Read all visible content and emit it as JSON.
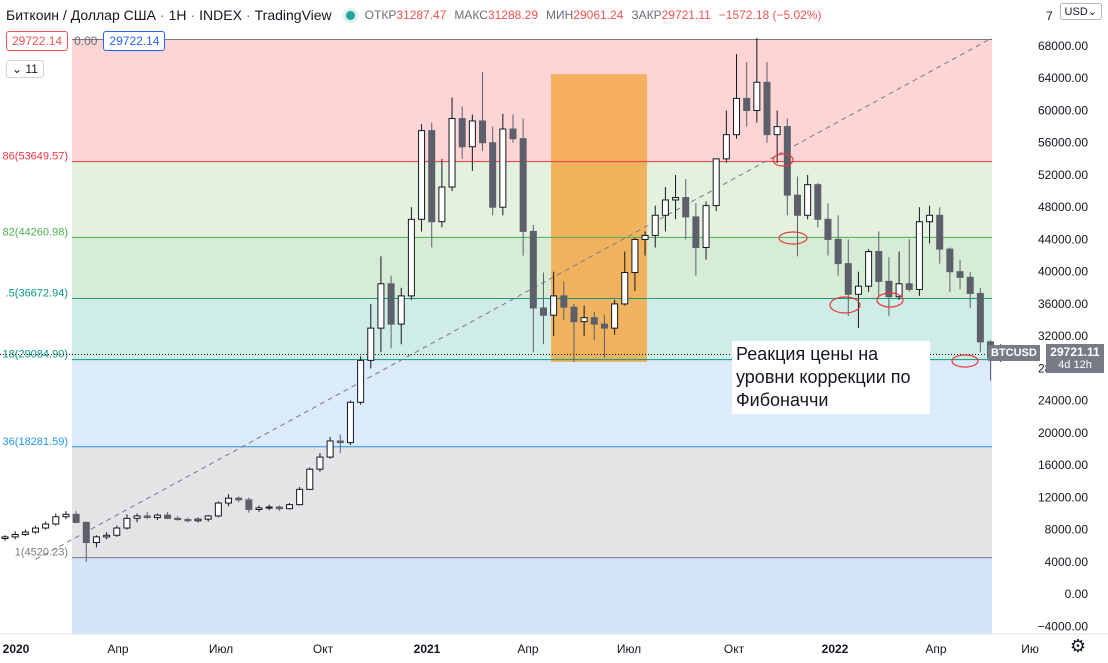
{
  "header": {
    "symbol_name": "Биткоин / Доллар США",
    "interval": "1Н",
    "exchange": "INDEX",
    "platform": "TradingView",
    "ohlc": {
      "open_label": "ОТКР",
      "open": "31287.47",
      "high_label": "МАКС",
      "high": "31288.29",
      "low_label": "МИН",
      "low": "29061.24",
      "close_label": "ЗАКР",
      "close": "29721.11",
      "change": "−1572.18 (−5.02%)"
    }
  },
  "price_boxes": {
    "sell": "29722.14",
    "spread": "0.00",
    "buy": "29722.14"
  },
  "indicators_toggle": "11",
  "currency_button": "USD",
  "annotation_text": "Реакция цены на уровни коррекции по Фибоначчи",
  "last_price": {
    "symbol": "BTCUSD",
    "price": "29721.11",
    "countdown": "4d 12h"
  },
  "chart_data": {
    "type": "candlestick",
    "title": "",
    "ylim": [
      -5000,
      70000
    ],
    "y_ticks": [
      "68000.00",
      "64000.00",
      "60000.00",
      "56000.00",
      "52000.00",
      "48000.00",
      "44000.00",
      "40000.00",
      "36000.00",
      "32000.00",
      "28000.00",
      "24000.00",
      "20000.00",
      "16000.00",
      "12000.00",
      "8000.00",
      "4000.00",
      "0.00",
      "−4000.00"
    ],
    "x_ticks": [
      "2020",
      "Апр",
      "Июл",
      "Окт",
      "2021",
      "Апр",
      "Июл",
      "Окт",
      "2022",
      "Апр",
      "Ию"
    ],
    "fib_levels": [
      {
        "label": "",
        "value": 68800,
        "color": "#787b86"
      },
      {
        "label": "86(53649.57)",
        "value": 53649.57,
        "color": "#f23645"
      },
      {
        "label": "82(44260.98)",
        "value": 44260.98,
        "color": "#4caf50"
      },
      {
        "label": ".5(36672.94)",
        "value": 36672.94,
        "color": "#089981"
      },
      {
        "label": "18(29084.90)",
        "value": 29084.9,
        "color": "#089981"
      },
      {
        "label": "36(18281.59)",
        "value": 18281.59,
        "color": "#2196f3"
      },
      {
        "label": "1(4520.23)",
        "value": 4520.23,
        "color": "#787b86"
      }
    ],
    "fib_zones": [
      {
        "from": 53649.57,
        "to": 68800,
        "color": "#fcd5d4"
      },
      {
        "from": 44260.98,
        "to": 53649.57,
        "color": "#e4f1df"
      },
      {
        "from": 36672.94,
        "to": 44260.98,
        "color": "#d6ecd6"
      },
      {
        "from": 29084.9,
        "to": 36672.94,
        "color": "#cfece7"
      },
      {
        "from": 18281.59,
        "to": 29084.9,
        "color": "#dbebfb"
      },
      {
        "from": 4520.23,
        "to": 18281.59,
        "color": "#e4e4e6"
      },
      {
        "from": -5000,
        "to": 4520.23,
        "color": "#d3e5f9"
      }
    ],
    "highlight_box": {
      "from_index": 36,
      "to_index": 42,
      "low": 28800,
      "high": 64500,
      "color": "#f4a847"
    },
    "trend_line": {
      "from": [
        3,
        4300
      ],
      "to": [
        70,
        69000
      ]
    },
    "candles": [
      [
        6900,
        7300,
        6600,
        7100
      ],
      [
        7100,
        7800,
        6800,
        7400
      ],
      [
        7400,
        8000,
        7200,
        7700
      ],
      [
        7700,
        8500,
        7500,
        8200
      ],
      [
        8200,
        9000,
        8000,
        8700
      ],
      [
        8700,
        10000,
        8500,
        9600
      ],
      [
        9600,
        10300,
        9300,
        9900
      ],
      [
        9900,
        10300,
        8800,
        8900
      ],
      [
        8900,
        9000,
        4000,
        6400
      ],
      [
        6400,
        7300,
        5800,
        7100
      ],
      [
        7100,
        7700,
        6800,
        7300
      ],
      [
        7300,
        8500,
        7100,
        8200
      ],
      [
        8200,
        9900,
        8000,
        9400
      ],
      [
        9400,
        10000,
        8900,
        9700
      ],
      [
        9700,
        10200,
        9300,
        9500
      ],
      [
        9500,
        10000,
        9200,
        9800
      ],
      [
        9800,
        10200,
        9300,
        9400
      ],
      [
        9400,
        9700,
        9100,
        9250
      ],
      [
        9250,
        9500,
        8900,
        9100
      ],
      [
        9100,
        9500,
        8900,
        9300
      ],
      [
        9300,
        9800,
        9000,
        9700
      ],
      [
        9700,
        11500,
        9500,
        11300
      ],
      [
        11300,
        12400,
        10900,
        11900
      ],
      [
        11900,
        12100,
        11400,
        11700
      ],
      [
        11700,
        12000,
        10100,
        10500
      ],
      [
        10500,
        11000,
        10200,
        10700
      ],
      [
        10700,
        11100,
        10400,
        10800
      ],
      [
        10800,
        11000,
        10300,
        10600
      ],
      [
        10600,
        11300,
        10500,
        11100
      ],
      [
        11100,
        13300,
        11000,
        13000
      ],
      [
        13000,
        15700,
        12900,
        15500
      ],
      [
        15500,
        17500,
        15200,
        17000
      ],
      [
        17000,
        19500,
        16800,
        19000
      ],
      [
        19000,
        19800,
        17500,
        18800
      ],
      [
        18800,
        24000,
        18500,
        23800
      ],
      [
        23800,
        29500,
        23500,
        29000
      ],
      [
        29000,
        36000,
        28000,
        33000
      ]
    ],
    "candles_2021": [
      [
        33000,
        41900,
        30000,
        38500
      ],
      [
        38500,
        39500,
        30500,
        33500
      ],
      [
        33500,
        38000,
        31000,
        37000
      ],
      [
        37000,
        48000,
        36500,
        46500
      ],
      [
        46500,
        58300,
        45000,
        57500
      ],
      [
        57500,
        58500,
        43000,
        46200
      ],
      [
        46200,
        54000,
        45500,
        50500
      ],
      [
        50500,
        61600,
        50000,
        59000
      ],
      [
        59000,
        60500,
        54000,
        55500
      ],
      [
        55500,
        59500,
        52500,
        58700
      ],
      [
        58700,
        64800,
        55000,
        56000
      ],
      [
        56000,
        58000,
        47000,
        48000
      ],
      [
        48000,
        59600,
        47000,
        57700
      ],
      [
        57700,
        59500,
        56000,
        56500
      ],
      [
        56500,
        59000,
        42000,
        45000
      ],
      [
        45000,
        45800,
        30000,
        35500
      ],
      [
        35500,
        39900,
        31000,
        34600
      ],
      [
        34600,
        40000,
        32000,
        37000
      ],
      [
        37000,
        38800,
        34000,
        35600
      ],
      [
        35600,
        36000,
        28800,
        33800
      ],
      [
        33800,
        35800,
        32000,
        34300
      ],
      [
        34300,
        35000,
        31500,
        33500
      ],
      [
        33500,
        34700,
        29300,
        33000
      ],
      [
        33000,
        36500,
        32200,
        36000
      ],
      [
        36000,
        42500,
        35800,
        39900
      ],
      [
        39900,
        44200,
        37600,
        44000
      ],
      [
        44000,
        45000,
        42000,
        44500
      ],
      [
        44500,
        48200,
        43000,
        47000
      ],
      [
        47000,
        50500,
        45000,
        48900
      ],
      [
        48900,
        52000,
        46500,
        49200
      ],
      [
        49200,
        51500,
        44000,
        46800
      ]
    ],
    "candles_2021b": [
      [
        46800,
        48500,
        39500,
        43000
      ],
      [
        43000,
        48700,
        41500,
        48200
      ],
      [
        48200,
        54000,
        47500,
        54000
      ],
      [
        54000,
        60000,
        53500,
        57000
      ],
      [
        57000,
        67000,
        56500,
        61500
      ],
      [
        61500,
        66000,
        58000,
        60000
      ],
      [
        60000,
        69000,
        58500,
        63500
      ],
      [
        63500,
        66000,
        56000,
        57000
      ],
      [
        57000,
        60000,
        53500,
        58000
      ],
      [
        58000,
        59000,
        47000,
        49500
      ],
      [
        49500,
        51800,
        41900,
        47000
      ],
      [
        47000,
        52000,
        46500,
        50800
      ],
      [
        50800,
        51000,
        45500,
        46500
      ],
      [
        46500,
        48500,
        42000,
        44000
      ],
      [
        44000,
        47000,
        39500,
        41000
      ],
      [
        41000,
        44000,
        34500,
        37200
      ],
      [
        37200,
        40000,
        33000,
        38200
      ],
      [
        38200,
        42800,
        37500,
        42500
      ],
      [
        42500,
        45000,
        37000,
        38800
      ],
      [
        38800,
        41800,
        34500,
        36900
      ],
      [
        36900,
        42500,
        36500,
        38500
      ],
      [
        38500,
        44000,
        37500,
        37800
      ],
      [
        37800,
        48000,
        37000,
        46200
      ],
      [
        46200,
        48200,
        43500,
        47000
      ],
      [
        47000,
        48000,
        41000,
        42800
      ],
      [
        42800,
        43000,
        37500,
        40000
      ],
      [
        40000,
        41500,
        37800,
        39300
      ],
      [
        39300,
        40000,
        35500,
        37300
      ],
      [
        37300,
        38000,
        30000,
        31300
      ],
      [
        31300,
        31500,
        26500,
        29300
      ],
      [
        29300,
        31000,
        28800,
        29721
      ]
    ]
  }
}
